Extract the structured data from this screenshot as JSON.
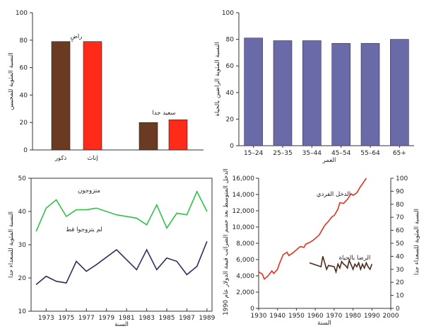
{
  "chart_data": [
    {
      "id": "gender",
      "type": "bar",
      "ylabel": "النسبة المئوية للمجيبين",
      "ylim": [
        0,
        100
      ],
      "yticks": [
        0,
        20,
        40,
        60,
        80,
        100
      ],
      "groups": [
        {
          "label": "راضٍ",
          "bars": [
            {
              "category": "ذكور",
              "value": 79,
              "color": "#6b3a22"
            },
            {
              "category": "إناث",
              "value": 79,
              "color": "#ff2a1a"
            }
          ]
        },
        {
          "label": "سعيد جدا",
          "bars": [
            {
              "category": "",
              "value": 20,
              "color": "#6b3a22"
            },
            {
              "category": "",
              "value": 22,
              "color": "#ff2a1a"
            }
          ]
        }
      ],
      "category_labels": [
        "ذكور",
        "إناث"
      ]
    },
    {
      "id": "age",
      "type": "bar",
      "xlabel": "العمر",
      "ylabel": "النسبة المئوية الراضين بالحياة",
      "ylim": [
        0,
        100
      ],
      "yticks": [
        0,
        20,
        40,
        60,
        80,
        100
      ],
      "categories": [
        "15–24",
        "25–35",
        "35–44",
        "45–54",
        "55–64",
        "65+"
      ],
      "values": [
        81,
        79,
        79,
        77,
        77,
        80
      ],
      "color": "#6a6aa8"
    },
    {
      "id": "marital",
      "type": "line",
      "xlabel": "السنة",
      "ylabel": "النسبة المئوية للسعداء جدا",
      "ylim": [
        10,
        50
      ],
      "yticks": [
        10,
        20,
        30,
        40,
        50
      ],
      "xlim": [
        1971.5,
        1989.5
      ],
      "xticks": [
        1973,
        1975,
        1977,
        1979,
        1981,
        1983,
        1985,
        1987,
        1989
      ],
      "series": [
        {
          "name": "متزوجون",
          "color": "#2ec24a",
          "x": [
            1972,
            1973,
            1974,
            1975,
            1976,
            1977,
            1978,
            1980,
            1982,
            1983,
            1984,
            1985,
            1986,
            1987,
            1988,
            1989
          ],
          "values": [
            34,
            41,
            43.5,
            38.5,
            40.5,
            40.5,
            41,
            39,
            38,
            36,
            42,
            35,
            39.5,
            39,
            46,
            40
          ]
        },
        {
          "name": "لم يتزوجوا قط",
          "color": "#2e2f5e",
          "x": [
            1972,
            1973,
            1974,
            1975,
            1976,
            1977,
            1978,
            1980,
            1982,
            1983,
            1984,
            1985,
            1986,
            1987,
            1988,
            1989
          ],
          "values": [
            18,
            20.5,
            19,
            18.5,
            25,
            22,
            24,
            28.5,
            22.5,
            28.5,
            22.5,
            26,
            25,
            21,
            23.5,
            31
          ]
        }
      ]
    },
    {
      "id": "income",
      "type": "line",
      "xlabel": "السنة",
      "ylabel": "الدخل المتوسط بعد حسم الضرائب قيمة الدولار عام 1990",
      "ylabel_right": "النسبة المئوية للسعداء جدا",
      "ylim": [
        0,
        16000
      ],
      "yticks": [
        0,
        2000,
        4000,
        6000,
        8000,
        10000,
        12000,
        14000,
        16000
      ],
      "yticks_right": [
        0,
        10,
        20,
        30,
        40,
        50,
        60,
        70,
        80,
        90,
        100
      ],
      "xlim": [
        1930,
        2000
      ],
      "xticks": [
        1930,
        1940,
        1950,
        1960,
        1970,
        1980,
        1990,
        2000
      ],
      "series": [
        {
          "name": "الدخل الفردي",
          "color": "#e0321e",
          "axis": "left",
          "x": [
            1930,
            1932,
            1933,
            1935,
            1937,
            1938,
            1940,
            1941,
            1943,
            1945,
            1946,
            1948,
            1950,
            1952,
            1954,
            1955,
            1957,
            1959,
            1960,
            1962,
            1964,
            1965,
            1967,
            1969,
            1970,
            1972,
            1973,
            1975,
            1977,
            1979,
            1980,
            1982,
            1984,
            1985,
            1987
          ],
          "values": [
            4500,
            4200,
            3600,
            4000,
            4600,
            4300,
            4800,
            5500,
            6600,
            6900,
            6500,
            6800,
            7200,
            7600,
            7500,
            7900,
            8100,
            8400,
            8600,
            9000,
            9800,
            10200,
            10700,
            11300,
            11400,
            12200,
            13000,
            12900,
            13400,
            14100,
            13900,
            14200,
            15000,
            15300,
            16000
          ]
        },
        {
          "name": "الرضا بالحياة",
          "color": "#4a2a1a",
          "axis": "right",
          "x": [
            1957,
            1963,
            1964,
            1966,
            1967,
            1970,
            1971,
            1972,
            1973,
            1974,
            1975,
            1976,
            1977,
            1978,
            1980,
            1981,
            1982,
            1983,
            1984,
            1985,
            1986,
            1987,
            1988,
            1989,
            1990
          ],
          "values": [
            35,
            32,
            40,
            30,
            33,
            32,
            28,
            34,
            31,
            36,
            34,
            33,
            31,
            37,
            30,
            34,
            32,
            35,
            30,
            34,
            31,
            35,
            32,
            30,
            34
          ]
        }
      ]
    }
  ]
}
